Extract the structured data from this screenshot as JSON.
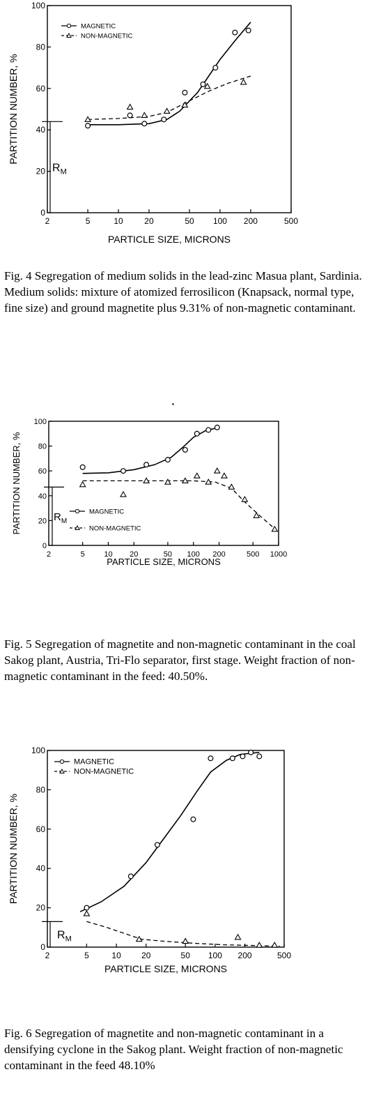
{
  "figures": [
    {
      "caption": "Fig. 4  Segregation of medium solids in the lead-zinc Masua plant, Sardinia. Medium solids: mixture of atomized ferrosilicon (Knapsack, normal type, fine size) and ground magnetite plus 9.31% of non-magnetic contaminant.",
      "rm_label": "R",
      "rm_sub": "M"
    },
    {
      "caption": "Fig. 5  Segregation of magnetite and non-magnetic contaminant in the coal Sakog plant, Austria, Tri-Flo separator, first stage. Weight fraction of non-magnetic contaminant in the feed: 40.50%.",
      "rm_label": "R",
      "rm_sub": "M"
    },
    {
      "caption": "Fig. 6  Segregation of magnetite and non-magnetic contaminant in a densifying cyclone in the Sakog plant. Weight fraction of non-magnetic contaminant in the feed 48.10%",
      "rm_label": "R",
      "rm_sub": "M"
    }
  ],
  "chart_data": [
    {
      "type": "scatter",
      "xlabel": "PARTICLE SIZE, MICRONS",
      "ylabel": "PARTITION NUMBER, %",
      "x_scale": "log",
      "xlim": [
        2,
        500
      ],
      "ylim": [
        0,
        100
      ],
      "x_ticks": [
        2,
        5,
        10,
        20,
        50,
        100,
        200,
        500
      ],
      "x_tick_labels": [
        "2",
        "5",
        "10",
        "20",
        "50",
        "100",
        "200",
        "500"
      ],
      "y_ticks": [
        0,
        20,
        40,
        60,
        80,
        100
      ],
      "y_tick_labels": [
        "0",
        "20",
        "40",
        "60",
        "80",
        "100"
      ],
      "legend_position": "top-left",
      "rm_value": 44,
      "series": [
        {
          "name": "MAGNETIC",
          "marker": "circle",
          "line": "solid",
          "points": [
            [
              5,
              42
            ],
            [
              13,
              47
            ],
            [
              18,
              43
            ],
            [
              28,
              45
            ],
            [
              45,
              58
            ],
            [
              68,
              62
            ],
            [
              90,
              70
            ],
            [
              140,
              87
            ],
            [
              190,
              88
            ]
          ],
          "curve": [
            [
              5,
              42.5
            ],
            [
              10,
              42.5
            ],
            [
              20,
              43
            ],
            [
              30,
              45
            ],
            [
              40,
              49
            ],
            [
              60,
              58
            ],
            [
              80,
              67
            ],
            [
              100,
              74
            ],
            [
              140,
              83
            ],
            [
              200,
              92
            ]
          ]
        },
        {
          "name": "NON-MAGNETIC",
          "marker": "triangle",
          "line": "dashed",
          "points": [
            [
              5,
              45
            ],
            [
              13,
              51
            ],
            [
              18,
              47
            ],
            [
              30,
              49
            ],
            [
              45,
              52
            ],
            [
              75,
              61
            ],
            [
              170,
              63
            ]
          ],
          "curve": [
            [
              5,
              45
            ],
            [
              10,
              45.5
            ],
            [
              20,
              46.5
            ],
            [
              30,
              48.5
            ],
            [
              50,
              54
            ],
            [
              80,
              59
            ],
            [
              120,
              62.5
            ],
            [
              200,
              66
            ]
          ]
        }
      ]
    },
    {
      "type": "scatter",
      "xlabel": "PARTICLE SIZE, MICRONS",
      "ylabel": "PARTITION NUMBER, %",
      "x_scale": "log",
      "xlim": [
        2,
        1000
      ],
      "ylim": [
        0,
        100
      ],
      "x_ticks": [
        2,
        5,
        10,
        20,
        50,
        100,
        200,
        500,
        1000
      ],
      "x_tick_labels": [
        "2",
        "5",
        "10",
        "20",
        "50",
        "100",
        "200",
        "500",
        "1000"
      ],
      "y_ticks": [
        0,
        20,
        40,
        60,
        80,
        100
      ],
      "y_tick_labels": [
        "0",
        "20",
        "40",
        "60",
        "80",
        "100"
      ],
      "legend_position": "bottom-left",
      "rm_value": 47,
      "series": [
        {
          "name": "MAGNETIC",
          "marker": "circle",
          "line": "solid",
          "points": [
            [
              5,
              63
            ],
            [
              15,
              60
            ],
            [
              28,
              65
            ],
            [
              50,
              69
            ],
            [
              80,
              77
            ],
            [
              110,
              90
            ],
            [
              150,
              93
            ],
            [
              190,
              95
            ]
          ],
          "curve": [
            [
              5,
              58
            ],
            [
              10,
              58.5
            ],
            [
              20,
              61
            ],
            [
              35,
              65
            ],
            [
              55,
              71
            ],
            [
              75,
              79
            ],
            [
              100,
              87
            ],
            [
              140,
              92.5
            ],
            [
              200,
              95
            ]
          ]
        },
        {
          "name": "NON-MAGNETIC",
          "marker": "triangle",
          "line": "dashed",
          "points": [
            [
              5,
              49
            ],
            [
              15,
              41
            ],
            [
              28,
              52
            ],
            [
              50,
              51
            ],
            [
              80,
              52
            ],
            [
              110,
              56
            ],
            [
              150,
              51
            ],
            [
              190,
              60
            ],
            [
              230,
              56
            ],
            [
              280,
              47
            ],
            [
              400,
              37
            ],
            [
              550,
              24
            ],
            [
              900,
              13
            ]
          ],
          "curve": [
            [
              5,
              52
            ],
            [
              20,
              52
            ],
            [
              50,
              52
            ],
            [
              100,
              52
            ],
            [
              180,
              51
            ],
            [
              280,
              46
            ],
            [
              400,
              35
            ],
            [
              600,
              24
            ],
            [
              950,
              12
            ]
          ]
        }
      ]
    },
    {
      "type": "scatter",
      "xlabel": "PARTICLE SIZE, MICRONS",
      "ylabel": "PARTITION NUMBER, %",
      "x_scale": "log",
      "xlim": [
        2,
        500
      ],
      "ylim": [
        0,
        100
      ],
      "x_ticks": [
        2,
        5,
        10,
        20,
        50,
        100,
        200,
        500
      ],
      "x_tick_labels": [
        "2",
        "5",
        "10",
        "20",
        "50",
        "100",
        "200",
        "500"
      ],
      "y_ticks": [
        0,
        20,
        40,
        60,
        80,
        100
      ],
      "y_tick_labels": [
        "0",
        "20",
        "40",
        "60",
        "80",
        "100"
      ],
      "legend_position": "top-left",
      "rm_value": 13,
      "series": [
        {
          "name": "MAGNETIC",
          "marker": "circle",
          "line": "solid",
          "points": [
            [
              5,
              20
            ],
            [
              14,
              36
            ],
            [
              26,
              52
            ],
            [
              60,
              65
            ],
            [
              90,
              96
            ],
            [
              150,
              96
            ],
            [
              190,
              97
            ],
            [
              230,
              99
            ],
            [
              280,
              97
            ]
          ],
          "curve": [
            [
              4.3,
              18
            ],
            [
              7,
              23
            ],
            [
              12,
              31
            ],
            [
              20,
              43
            ],
            [
              30,
              55
            ],
            [
              45,
              67
            ],
            [
              65,
              79
            ],
            [
              90,
              89
            ],
            [
              130,
              95
            ],
            [
              180,
              98
            ],
            [
              280,
              99
            ]
          ]
        },
        {
          "name": "NON-MAGNETIC",
          "marker": "triangle",
          "line": "dashed",
          "points": [
            [
              5,
              17
            ],
            [
              17,
              4
            ],
            [
              50,
              3
            ],
            [
              170,
              5
            ],
            [
              280,
              1
            ],
            [
              400,
              1
            ]
          ],
          "curve": [
            [
              5,
              13
            ],
            [
              8,
              10
            ],
            [
              12,
              7
            ],
            [
              18,
              4
            ],
            [
              30,
              3
            ],
            [
              60,
              2
            ],
            [
              120,
              1.2
            ],
            [
              250,
              0.8
            ],
            [
              450,
              0.5
            ]
          ]
        }
      ]
    }
  ]
}
